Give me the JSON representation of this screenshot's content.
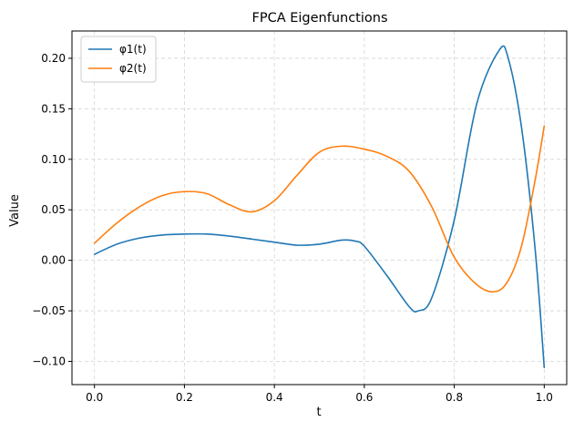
{
  "chart_data": {
    "type": "line",
    "title": "FPCA Eigenfunctions",
    "xlabel": "t",
    "ylabel": "Value",
    "xlim": [
      -0.05,
      1.05
    ],
    "ylim": [
      -0.123,
      0.227
    ],
    "xticks": [
      0.0,
      0.2,
      0.4,
      0.6,
      0.8,
      1.0
    ],
    "xtick_labels": [
      "0.0",
      "0.2",
      "0.4",
      "0.6",
      "0.8",
      "1.0"
    ],
    "yticks": [
      -0.1,
      -0.05,
      0.0,
      0.05,
      0.1,
      0.15,
      0.2
    ],
    "ytick_labels": [
      "−0.10",
      "−0.05",
      "0.00",
      "0.05",
      "0.10",
      "0.15",
      "0.20"
    ],
    "grid": true,
    "legend_position": "upper-left",
    "series": [
      {
        "name": "φ1(t)",
        "color": "#1f77b4",
        "points": [
          [
            0.0,
            0.006
          ],
          [
            0.05,
            0.016
          ],
          [
            0.1,
            0.022
          ],
          [
            0.15,
            0.025
          ],
          [
            0.2,
            0.026
          ],
          [
            0.25,
            0.026
          ],
          [
            0.3,
            0.024
          ],
          [
            0.35,
            0.021
          ],
          [
            0.4,
            0.018
          ],
          [
            0.45,
            0.015
          ],
          [
            0.5,
            0.016
          ],
          [
            0.55,
            0.02
          ],
          [
            0.58,
            0.019
          ],
          [
            0.6,
            0.014
          ],
          [
            0.65,
            -0.015
          ],
          [
            0.7,
            -0.046
          ],
          [
            0.72,
            -0.05
          ],
          [
            0.75,
            -0.037
          ],
          [
            0.8,
            0.04
          ],
          [
            0.85,
            0.155
          ],
          [
            0.9,
            0.208
          ],
          [
            0.92,
            0.2
          ],
          [
            0.95,
            0.13
          ],
          [
            0.98,
            0.01
          ],
          [
            1.0,
            -0.106
          ]
        ]
      },
      {
        "name": "φ2(t)",
        "color": "#ff7f0e",
        "points": [
          [
            0.0,
            0.017
          ],
          [
            0.05,
            0.037
          ],
          [
            0.1,
            0.053
          ],
          [
            0.15,
            0.064
          ],
          [
            0.2,
            0.068
          ],
          [
            0.25,
            0.066
          ],
          [
            0.3,
            0.055
          ],
          [
            0.35,
            0.048
          ],
          [
            0.4,
            0.059
          ],
          [
            0.45,
            0.084
          ],
          [
            0.5,
            0.107
          ],
          [
            0.55,
            0.113
          ],
          [
            0.6,
            0.11
          ],
          [
            0.65,
            0.103
          ],
          [
            0.7,
            0.088
          ],
          [
            0.75,
            0.053
          ],
          [
            0.8,
            0.003
          ],
          [
            0.85,
            -0.024
          ],
          [
            0.89,
            -0.031
          ],
          [
            0.92,
            -0.02
          ],
          [
            0.95,
            0.015
          ],
          [
            0.98,
            0.08
          ],
          [
            1.0,
            0.133
          ]
        ]
      }
    ]
  }
}
